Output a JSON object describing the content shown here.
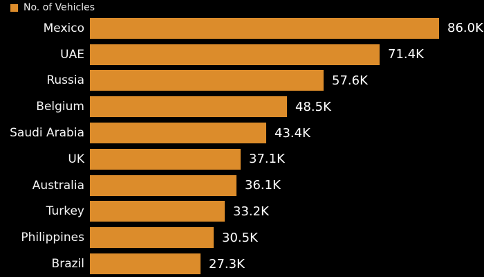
{
  "chart_data": {
    "type": "bar",
    "orientation": "horizontal",
    "title": "",
    "legend_label": "No. of Vehicles",
    "legend_position": "top-left",
    "categories": [
      "Mexico",
      "UAE",
      "Russia",
      "Belgium",
      "Saudi Arabia",
      "UK",
      "Australia",
      "Turkey",
      "Philippines",
      "Brazil"
    ],
    "values": [
      86.0,
      71.4,
      57.6,
      48.5,
      43.4,
      37.1,
      36.1,
      33.2,
      30.5,
      27.3
    ],
    "value_labels": [
      "86.0K",
      "71.4K",
      "57.6K",
      "48.5K",
      "43.4K",
      "37.1K",
      "36.1K",
      "33.2K",
      "30.5K",
      "27.3K"
    ],
    "xlabel": "",
    "ylabel": "",
    "xlim": [
      0,
      86
    ],
    "grid": false,
    "colors": {
      "bar": "#DC8C2B",
      "background": "#000000",
      "text": "#FFFFFF"
    }
  }
}
